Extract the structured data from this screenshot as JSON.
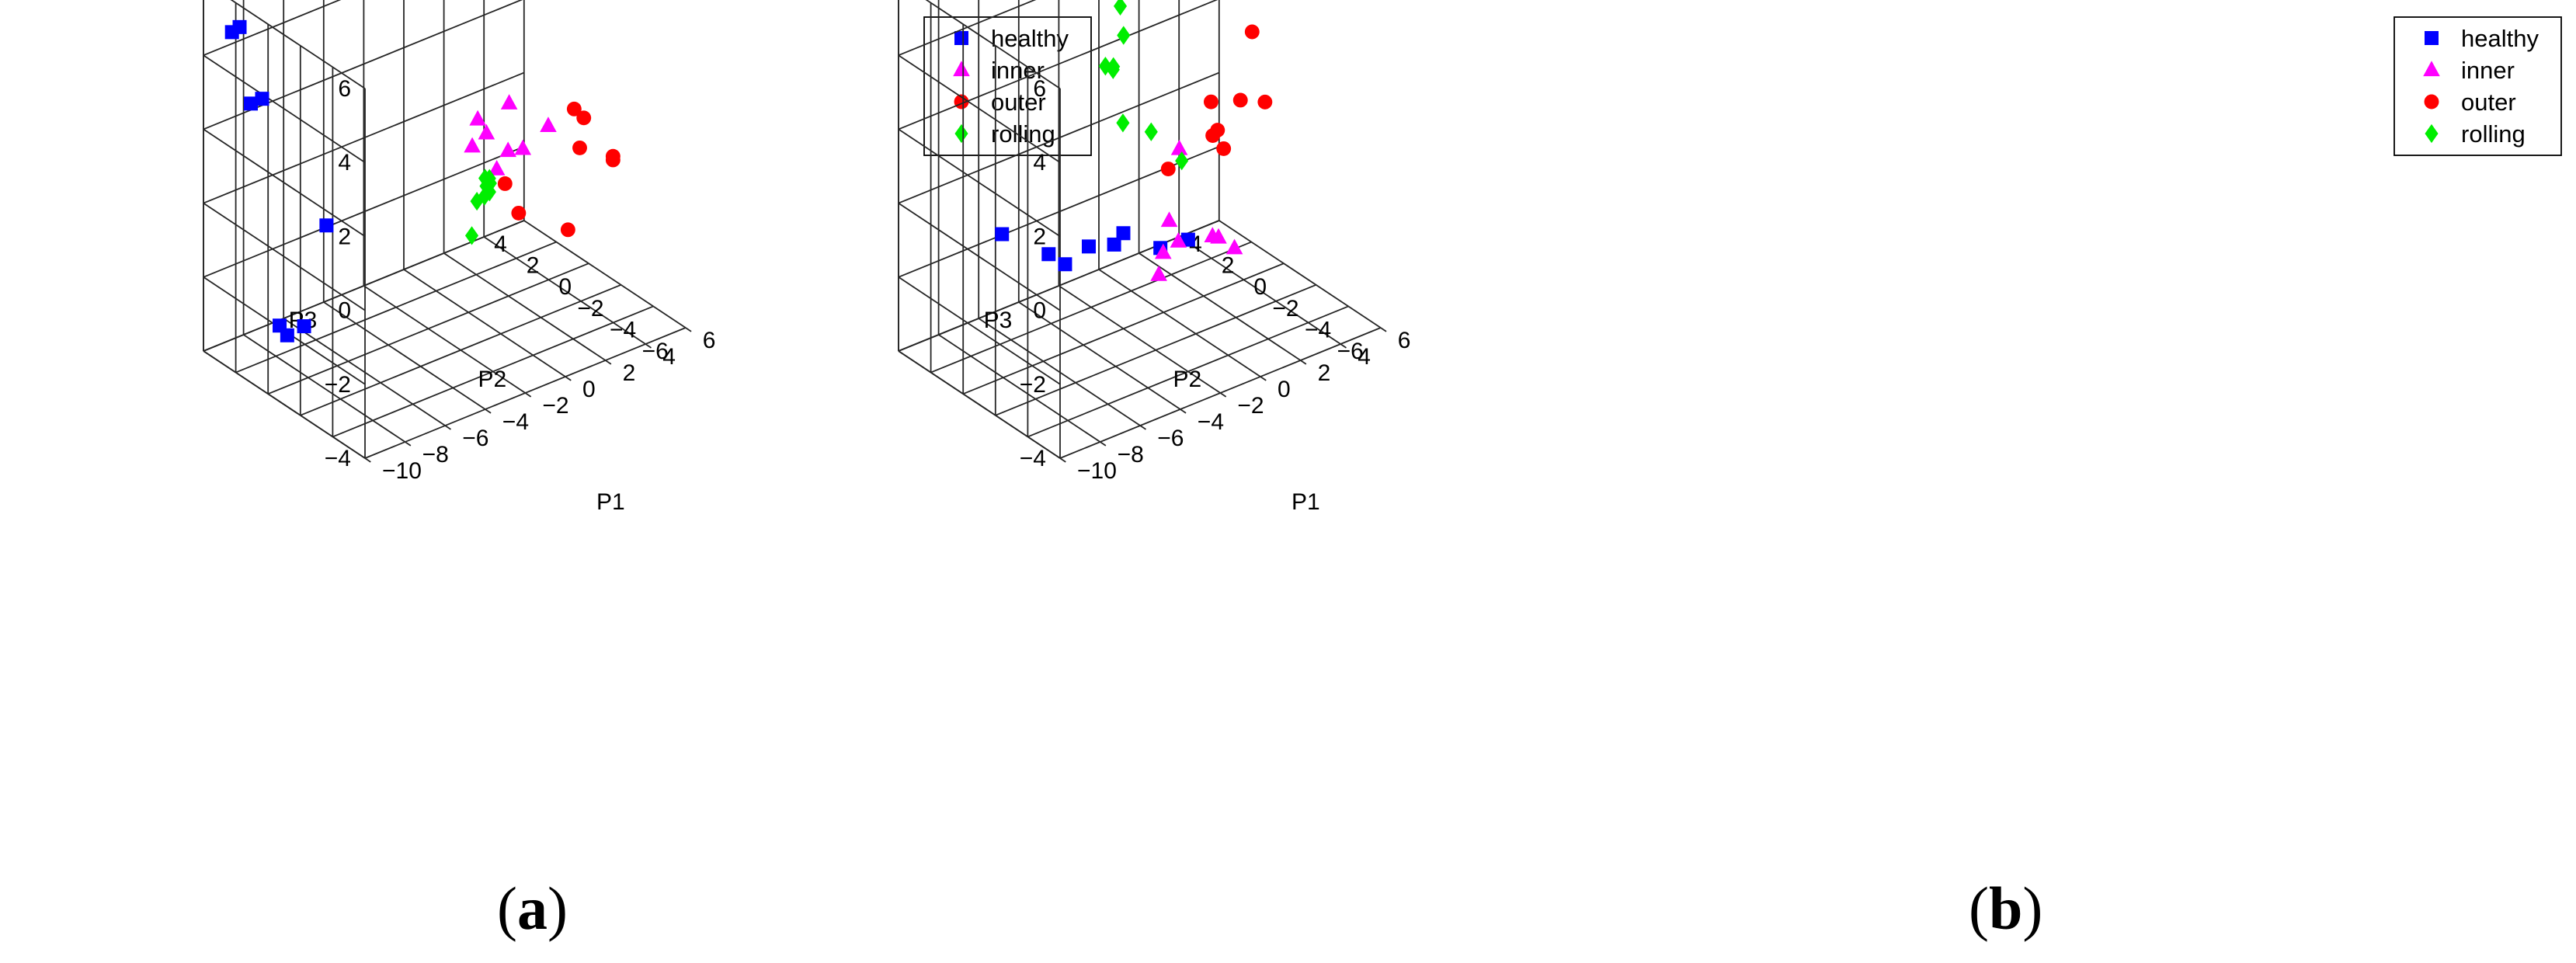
{
  "panels": [
    {
      "label_open": "(",
      "label_letter": "a",
      "label_close": ")"
    },
    {
      "label_open": "(",
      "label_letter": "b",
      "label_close": ")"
    }
  ],
  "colors": {
    "healthy": "#0000ff",
    "inner": "#ff00ff",
    "outer": "#ff0000",
    "rolling": "#00ee00",
    "grid": "#262626"
  },
  "chart_data": [
    {
      "type": "scatter",
      "projection": "3d",
      "title": "",
      "xlabel": "P1",
      "ylabel": "P2",
      "zlabel": "P3",
      "xlim": [
        -10,
        6
      ],
      "ylim": [
        -6,
        4
      ],
      "zlim": [
        -4,
        6
      ],
      "xticks": [
        "-10",
        "-8",
        "-6",
        "-4",
        "-2",
        "0",
        "2",
        "4",
        "6"
      ],
      "yticks": [
        "-6",
        "-4",
        "-2",
        "0",
        "2",
        "4"
      ],
      "zticks": [
        "-4",
        "-2",
        "0",
        "2",
        "4",
        "6"
      ],
      "grid": true,
      "legend_position": "top-right",
      "series": [
        {
          "name": "healthy",
          "marker": "square",
          "points": [
            [
              -8.9,
              3.6,
              4.5
            ],
            [
              -8.6,
              3.5,
              4.6
            ],
            [
              -8.2,
              3.3,
              2.5
            ],
            [
              -7.8,
              3.1,
              2.6
            ],
            [
              -8.4,
              0.8,
              -3.0
            ],
            [
              -8.7,
              0.9,
              -2.7
            ],
            [
              -7.8,
              0.5,
              -2.8
            ],
            [
              -6.2,
              1.1,
              -0.6
            ]
          ]
        },
        {
          "name": "inner",
          "marker": "triangle",
          "points": [
            [
              -2.6,
              -3.8,
              2.9
            ],
            [
              -1.6,
              -3.1,
              2.1
            ],
            [
              1.0,
              -3.7,
              1.9
            ],
            [
              -1.1,
              -1.6,
              1.2
            ],
            [
              0.5,
              -1.9,
              2.1
            ],
            [
              0.7,
              -2.5,
              1.0
            ],
            [
              -0.2,
              -2.7,
              1.2
            ],
            [
              -0.2,
              -2.0,
              0.5
            ]
          ]
        },
        {
          "name": "outer",
          "marker": "circle",
          "points": [
            [
              3.1,
              -2.7,
              1.6
            ],
            [
              3.5,
              -2.8,
              1.3
            ],
            [
              3.7,
              -2.3,
              0.3
            ],
            [
              1.1,
              -0.9,
              -0.5
            ],
            [
              5.2,
              -2.5,
              -0.2
            ],
            [
              5.2,
              -2.5,
              -0.3
            ],
            [
              1.7,
              -1.0,
              -1.4
            ],
            [
              4.0,
              -1.2,
              -2.3
            ]
          ]
        },
        {
          "name": "rolling",
          "marker": "diamond",
          "points": [
            [
              -0.8,
              -2.3,
              0.1
            ],
            [
              -0.3,
              -1.4,
              0.1
            ],
            [
              -0.2,
              -1.6,
              0.0
            ],
            [
              0.1,
              -0.4,
              -0.9
            ],
            [
              0.0,
              -1.3,
              0.0
            ],
            [
              0.4,
              -0.6,
              -0.5
            ],
            [
              0.4,
              -0.5,
              -0.8
            ],
            [
              -0.8,
              -1.2,
              -1.4
            ]
          ]
        }
      ]
    },
    {
      "type": "scatter",
      "projection": "3d",
      "title": "",
      "xlabel": "P1",
      "ylabel": "P2",
      "zlabel": "P3",
      "xlim": [
        -10,
        6
      ],
      "ylim": [
        -6,
        4
      ],
      "zlim": [
        -4,
        6
      ],
      "xticks": [
        "-10",
        "-8",
        "-6",
        "-4",
        "-2",
        "0",
        "2",
        "4",
        "6"
      ],
      "yticks": [
        "-6",
        "-4",
        "-2",
        "0",
        "2",
        "4"
      ],
      "zticks": [
        "-4",
        "-2",
        "0",
        "2",
        "4",
        "6"
      ],
      "grid": true,
      "legend_position": "top-right",
      "series": [
        {
          "name": "healthy",
          "marker": "square",
          "points": [
            [
              -4.4,
              -2.4,
              -0.5
            ],
            [
              -4.1,
              -2.6,
              -0.2
            ],
            [
              -3.3,
              -3.9,
              -0.4
            ],
            [
              -2.4,
              -4.5,
              -0.2
            ],
            [
              -5.1,
              -1.7,
              -0.6
            ],
            [
              -5.8,
              -1.1,
              -1.1
            ],
            [
              -6.7,
              -1.2,
              -0.6
            ],
            [
              -7.9,
              0.2,
              -0.2
            ]
          ]
        },
        {
          "name": "inner",
          "marker": "triangle",
          "points": [
            [
              -0.5,
              -1.6,
              1.0
            ],
            [
              -0.2,
              -0.6,
              -1.3
            ],
            [
              -0.5,
              -0.6,
              -2.1
            ],
            [
              -0.8,
              -0.7,
              -2.6
            ],
            [
              0.5,
              -0.3,
              -2.1
            ],
            [
              1.8,
              -0.8,
              -2.1
            ],
            [
              2.1,
              -0.8,
              -2.2
            ],
            [
              3.3,
              -0.3,
              -2.9
            ]
          ]
        },
        {
          "name": "outer",
          "marker": "circle",
          "points": [
            [
              4.1,
              -0.4,
              2.8
            ],
            [
              0.6,
              -2.2,
              2.2
            ],
            [
              4.0,
              0.2,
              0.8
            ],
            [
              4.5,
              -0.7,
              0.9
            ],
            [
              2.7,
              0.3,
              0.1
            ],
            [
              3.1,
              0.5,
              0.1
            ],
            [
              2.6,
              -0.5,
              0.0
            ],
            [
              0.8,
              0.7,
              -0.5
            ]
          ]
        },
        {
          "name": "rolling",
          "marker": "diamond",
          "points": [
            [
              -2.4,
              -0.3,
              4.9
            ],
            [
              -2.8,
              -1.0,
              4.4
            ],
            [
              -3.0,
              -0.6,
              3.4
            ],
            [
              -2.9,
              0.0,
              3.3
            ],
            [
              -2.5,
              0.0,
              3.2
            ],
            [
              -3.8,
              -2.2,
              2.6
            ],
            [
              -1.1,
              -0.6,
              1.3
            ],
            [
              -0.3,
              -1.5,
              0.6
            ]
          ]
        }
      ]
    }
  ]
}
